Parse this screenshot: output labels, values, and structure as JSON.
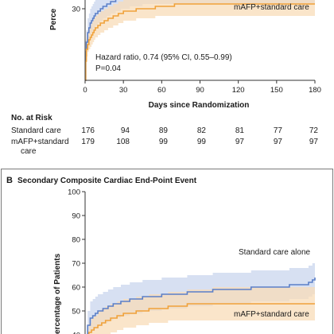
{
  "colors": {
    "standard": "#5b7fc8",
    "standard_band": "#c9d5ee",
    "mafp": "#f0a23a",
    "mafp_band": "#f8dcb8",
    "frame": "#7a7a7a",
    "axis": "#333333"
  },
  "panel_a": {
    "ylabel_partial": "Perce",
    "legend_mafp": "mAFP+standard care",
    "annotation_line1": "Hazard ratio, 0.74 (95% CI, 0.55–0.99)",
    "annotation_line2": "P=0.04",
    "xlabel": "Days since Randomization",
    "risk_table": {
      "heading": "No. at Risk",
      "rows": [
        {
          "label": "Standard care",
          "label2": "",
          "values": [
            "176",
            "94",
            "89",
            "82",
            "81",
            "77",
            "72"
          ]
        },
        {
          "label": "mAFP+standard",
          "label2": "care",
          "values": [
            "179",
            "108",
            "99",
            "99",
            "97",
            "97",
            "97"
          ]
        }
      ]
    }
  },
  "panel_b": {
    "letter": "B",
    "title": "Secondary Composite Cardiac End-Point Event",
    "ylabel_partial": "ercentage of Patients",
    "legend_standard": "Standard care alone",
    "legend_mafp": "mAFP+standard care"
  },
  "chart_data": [
    {
      "type": "line",
      "panel": "A",
      "xlabel": "Days since Randomization",
      "ylabel": "Perce",
      "x_ticks": [
        0,
        30,
        60,
        90,
        120,
        150,
        180
      ],
      "x_tick_labels": [
        "0",
        "30",
        "60",
        "90",
        "120",
        "150",
        "180"
      ],
      "y_ticks": [
        30
      ],
      "y_tick_labels": [
        "30"
      ],
      "xlim": [
        0,
        180
      ],
      "ylim": [
        0,
        38
      ],
      "series": [
        {
          "name": "Standard care",
          "x": [
            0,
            0.5,
            1,
            2,
            3,
            4,
            5,
            6,
            7,
            8,
            10,
            12,
            14,
            17,
            20,
            24,
            28,
            35,
            45,
            180
          ],
          "y": [
            0,
            12,
            16,
            20,
            22,
            24,
            25,
            26,
            27,
            28,
            29,
            30,
            31,
            32,
            33,
            34,
            35,
            36,
            37,
            38
          ],
          "ci_low": [
            0,
            7,
            11,
            14,
            16,
            18,
            19,
            20,
            21,
            22,
            23,
            24,
            25,
            26,
            27,
            28,
            29,
            30,
            31,
            32
          ],
          "ci_high": [
            0,
            17,
            21,
            26,
            28,
            30,
            31,
            32,
            33,
            34,
            35,
            36,
            37,
            38,
            38,
            38,
            38,
            38,
            38,
            38
          ]
        },
        {
          "name": "mAFP+standard care",
          "x": [
            0,
            0.5,
            1,
            2,
            3,
            4,
            5,
            6,
            7,
            8,
            10,
            12,
            15,
            18,
            22,
            26,
            30,
            40,
            55,
            70,
            180
          ],
          "y": [
            0,
            8,
            13,
            15,
            17,
            18,
            19,
            20,
            21,
            22,
            23,
            24,
            25,
            26,
            27,
            28,
            29,
            30,
            31,
            32,
            32
          ],
          "ci_low": [
            0,
            4,
            8,
            10,
            12,
            13,
            14,
            15,
            16,
            17,
            18,
            19,
            20,
            21,
            22,
            23,
            24,
            25,
            26,
            27,
            27
          ],
          "ci_high": [
            0,
            12,
            18,
            20,
            22,
            23,
            24,
            25,
            26,
            27,
            28,
            29,
            30,
            31,
            32,
            33,
            34,
            35,
            36,
            37,
            37
          ]
        }
      ],
      "annotations": [
        "mAFP+standard care",
        "Hazard ratio, 0.74 (95% CI, 0.55–0.99)",
        "P=0.04"
      ]
    },
    {
      "type": "line",
      "panel": "B",
      "title": "Secondary Composite Cardiac End-Point Event",
      "ylabel": "ercentage of Patients",
      "y_ticks": [
        40,
        50,
        60,
        70,
        80,
        90,
        100
      ],
      "y_tick_labels": [
        "40",
        "50",
        "60",
        "70",
        "80",
        "90",
        "100"
      ],
      "xlim": [
        0,
        180
      ],
      "ylim": [
        38,
        100
      ],
      "series": [
        {
          "name": "Standard care alone",
          "x": [
            0,
            2,
            4,
            6,
            8,
            10,
            14,
            18,
            22,
            28,
            35,
            45,
            60,
            80,
            100,
            130,
            160,
            175,
            178,
            180
          ],
          "y": [
            38,
            44,
            47,
            48,
            49,
            50,
            51,
            52,
            53,
            54,
            55,
            56,
            57,
            58,
            59,
            60,
            61,
            62,
            63,
            64
          ],
          "ci_low": [
            38,
            38,
            40,
            41,
            42,
            43,
            44,
            45,
            46,
            47,
            48,
            49,
            50,
            51,
            52,
            53,
            54,
            55,
            56,
            57
          ],
          "ci_high": [
            38,
            50,
            54,
            55,
            56,
            57,
            58,
            59,
            60,
            61,
            62,
            63,
            64,
            65,
            66,
            67,
            68,
            69,
            70,
            71
          ]
        },
        {
          "name": "mAFP+standard care",
          "x": [
            0,
            2,
            3,
            5,
            7,
            10,
            13,
            16,
            20,
            25,
            30,
            40,
            50,
            65,
            80,
            100,
            130,
            180
          ],
          "y": [
            38,
            39,
            41,
            42,
            43,
            44,
            45,
            46,
            47,
            48,
            49,
            50,
            51,
            52,
            53,
            53,
            53,
            53
          ],
          "ci_low": [
            38,
            38,
            38,
            38,
            38,
            38,
            39,
            40,
            40,
            41,
            42,
            43,
            44,
            45,
            46,
            46,
            46,
            46
          ],
          "ci_high": [
            38,
            42,
            45,
            47,
            48,
            50,
            51,
            52,
            53,
            54,
            55,
            56,
            57,
            58,
            59,
            60,
            60,
            60
          ]
        }
      ],
      "annotations": [
        "Standard care alone",
        "mAFP+standard care"
      ]
    }
  ]
}
